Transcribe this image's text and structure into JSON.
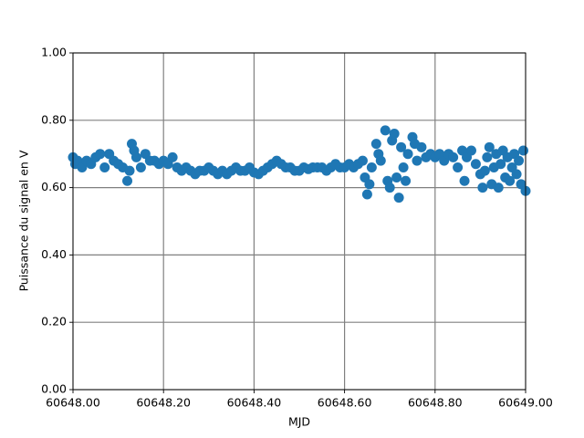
{
  "chart_data": {
    "type": "scatter",
    "xlabel": "MJD",
    "ylabel": "Puissance du signal en V",
    "color": "#1f77b4",
    "grid": true,
    "xlim": [
      60648.0,
      60649.0
    ],
    "xticks": [
      {
        "value": 60648.0,
        "label": "60648.00"
      },
      {
        "value": 60648.2,
        "label": "60648.20"
      },
      {
        "value": 60648.4,
        "label": "60648.40"
      },
      {
        "value": 60648.6,
        "label": "60648.60"
      },
      {
        "value": 60648.8,
        "label": "60648.80"
      },
      {
        "value": 60649.0,
        "label": "60649.00"
      }
    ],
    "ylim": [
      0,
      1
    ],
    "yticks": [
      {
        "value": 0,
        "label": "0.00"
      },
      {
        "value": 0.2,
        "label": "0.20"
      },
      {
        "value": 0.4,
        "label": "0.40"
      },
      {
        "value": 0.6,
        "label": "0.60"
      },
      {
        "value": 0.8,
        "label": "0.80"
      },
      {
        "value": 1,
        "label": "1.00"
      }
    ],
    "x": [
      60648.0,
      60648.005,
      60648.01,
      60648.02,
      60648.03,
      60648.04,
      60648.05,
      60648.06,
      60648.07,
      60648.08,
      60648.09,
      60648.1,
      60648.11,
      60648.12,
      60648.125,
      60648.13,
      60648.135,
      60648.14,
      60648.15,
      60648.16,
      60648.17,
      60648.18,
      60648.19,
      60648.2,
      60648.21,
      60648.22,
      60648.23,
      60648.24,
      60648.25,
      60648.26,
      60648.27,
      60648.28,
      60648.29,
      60648.3,
      60648.31,
      60648.32,
      60648.33,
      60648.34,
      60648.35,
      60648.36,
      60648.37,
      60648.38,
      60648.39,
      60648.4,
      60648.41,
      60648.42,
      60648.43,
      60648.44,
      60648.45,
      60648.46,
      60648.47,
      60648.48,
      60648.49,
      60648.5,
      60648.51,
      60648.52,
      60648.53,
      60648.54,
      60648.55,
      60648.56,
      60648.57,
      60648.58,
      60648.59,
      60648.6,
      60648.61,
      60648.62,
      60648.63,
      60648.64,
      60648.645,
      60648.65,
      60648.655,
      60648.66,
      60648.67,
      60648.675,
      60648.68,
      60648.69,
      60648.695,
      60648.7,
      60648.705,
      60648.71,
      60648.715,
      60648.72,
      60648.725,
      60648.73,
      60648.735,
      60648.74,
      60648.75,
      60648.755,
      60648.76,
      60648.77,
      60648.78,
      60648.79,
      60648.8,
      60648.81,
      60648.82,
      60648.83,
      60648.84,
      60648.85,
      60648.86,
      60648.865,
      60648.87,
      60648.88,
      60648.89,
      60648.9,
      60648.905,
      60648.91,
      60648.915,
      60648.92,
      60648.925,
      60648.93,
      60648.935,
      60648.94,
      60648.945,
      60648.95,
      60648.955,
      60648.96,
      60648.965,
      60648.97,
      60648.975,
      60648.98,
      60648.985,
      60648.99,
      60648.995,
      60649.0
    ],
    "values": [
      0.69,
      0.67,
      0.68,
      0.66,
      0.68,
      0.67,
      0.69,
      0.7,
      0.66,
      0.7,
      0.68,
      0.67,
      0.66,
      0.62,
      0.65,
      0.73,
      0.71,
      0.69,
      0.66,
      0.7,
      0.68,
      0.68,
      0.67,
      0.68,
      0.67,
      0.69,
      0.66,
      0.65,
      0.66,
      0.65,
      0.64,
      0.65,
      0.65,
      0.66,
      0.65,
      0.64,
      0.65,
      0.64,
      0.65,
      0.66,
      0.65,
      0.65,
      0.66,
      0.645,
      0.64,
      0.65,
      0.66,
      0.67,
      0.68,
      0.67,
      0.66,
      0.66,
      0.65,
      0.65,
      0.66,
      0.655,
      0.66,
      0.66,
      0.66,
      0.65,
      0.66,
      0.67,
      0.66,
      0.66,
      0.67,
      0.66,
      0.67,
      0.68,
      0.63,
      0.58,
      0.61,
      0.66,
      0.73,
      0.7,
      0.68,
      0.77,
      0.62,
      0.6,
      0.74,
      0.76,
      0.63,
      0.57,
      0.72,
      0.66,
      0.62,
      0.7,
      0.75,
      0.73,
      0.68,
      0.72,
      0.69,
      0.7,
      0.69,
      0.7,
      0.68,
      0.7,
      0.69,
      0.66,
      0.71,
      0.62,
      0.69,
      0.71,
      0.67,
      0.64,
      0.6,
      0.65,
      0.69,
      0.72,
      0.61,
      0.66,
      0.7,
      0.6,
      0.67,
      0.71,
      0.63,
      0.69,
      0.62,
      0.66,
      0.7,
      0.64,
      0.68,
      0.61,
      0.71,
      0.59
    ]
  }
}
